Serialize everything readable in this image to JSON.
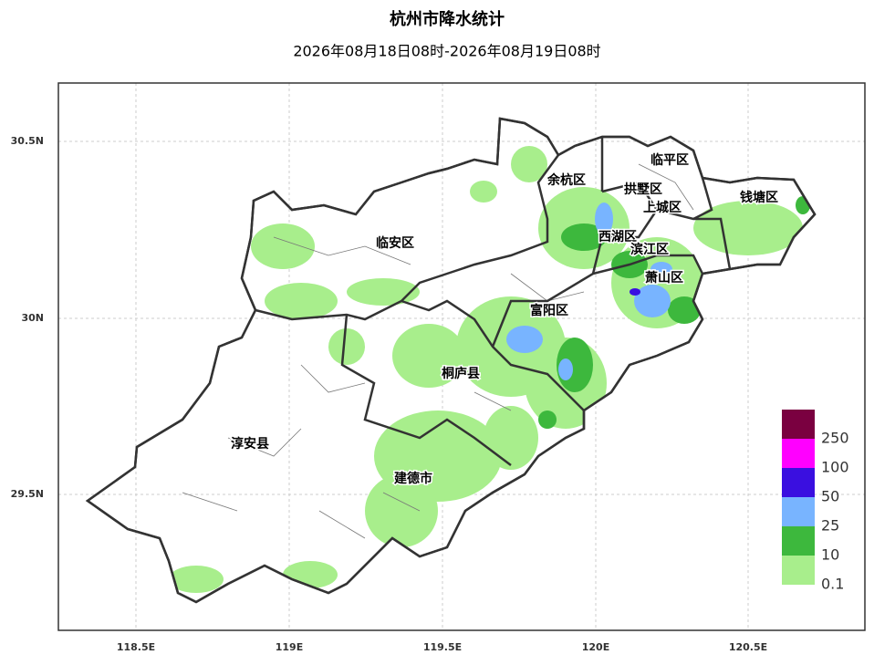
{
  "header": {
    "title": "杭州市降水统计",
    "subtitle": "2026年08月18日08时-2026年08月19日08时"
  },
  "axes": {
    "x_labels": [
      "118.5E",
      "119E",
      "119.5E",
      "120E",
      "120.5E"
    ],
    "y_labels": [
      "30.5N",
      "30N",
      "29.5N"
    ]
  },
  "districts": [
    "临平区",
    "余杭区",
    "拱墅区",
    "上城区",
    "钱塘区",
    "临安区",
    "西湖区",
    "滨江区",
    "萧山区",
    "富阳区",
    "桐庐县",
    "淳安县",
    "建德市"
  ],
  "legend": [
    {
      "label": 0.1,
      "color": "#a8ee8c"
    },
    {
      "label": 10,
      "color": "#3db83d"
    },
    {
      "label": 25,
      "color": "#78b4ff"
    },
    {
      "label": 50,
      "color": "#3a0fe0"
    },
    {
      "label": 100,
      "color": "#ff00ff"
    },
    {
      "label": 250,
      "color": "#7a0040"
    }
  ]
}
